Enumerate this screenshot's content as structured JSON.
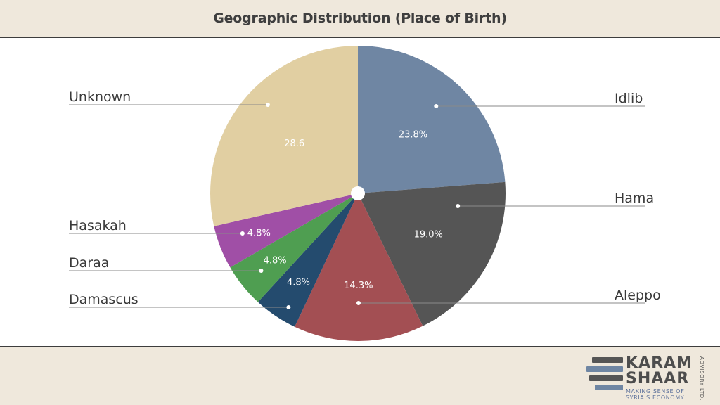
{
  "header": {
    "title": "Geographic Distribution (Place of Birth)"
  },
  "chart_data": {
    "type": "pie",
    "title": "Geographic Distribution (Place of Birth)",
    "slices": [
      {
        "label": "Idlib",
        "value": 23.8,
        "value_label": "23.8%",
        "color": "#6f86a3"
      },
      {
        "label": "Hama",
        "value": 19.0,
        "value_label": "19.0%",
        "color": "#555555"
      },
      {
        "label": "Aleppo",
        "value": 14.3,
        "value_label": "14.3%",
        "color": "#a34f53"
      },
      {
        "label": "Damascus",
        "value": 4.8,
        "value_label": "4.8%",
        "color": "#244b6e"
      },
      {
        "label": "Daraa",
        "value": 4.8,
        "value_label": "4.8%",
        "color": "#4f9e51"
      },
      {
        "label": "Hasakah",
        "value": 4.8,
        "value_label": "4.8%",
        "color": "#a04fa6"
      },
      {
        "label": "Unknown",
        "value": 28.6,
        "value_label": "28.6",
        "color": "#e1cfa2"
      }
    ],
    "start": "12 o'clock",
    "direction": "clockwise",
    "legend": "none (leader-line labels on both sides)"
  },
  "logo": {
    "word1": "KARAM",
    "word2": "SHAAR",
    "tagline1": "MAKING SENSE OF",
    "tagline2": "SYRIA'S ECONOMY",
    "side": "ADVISORY LTD."
  }
}
